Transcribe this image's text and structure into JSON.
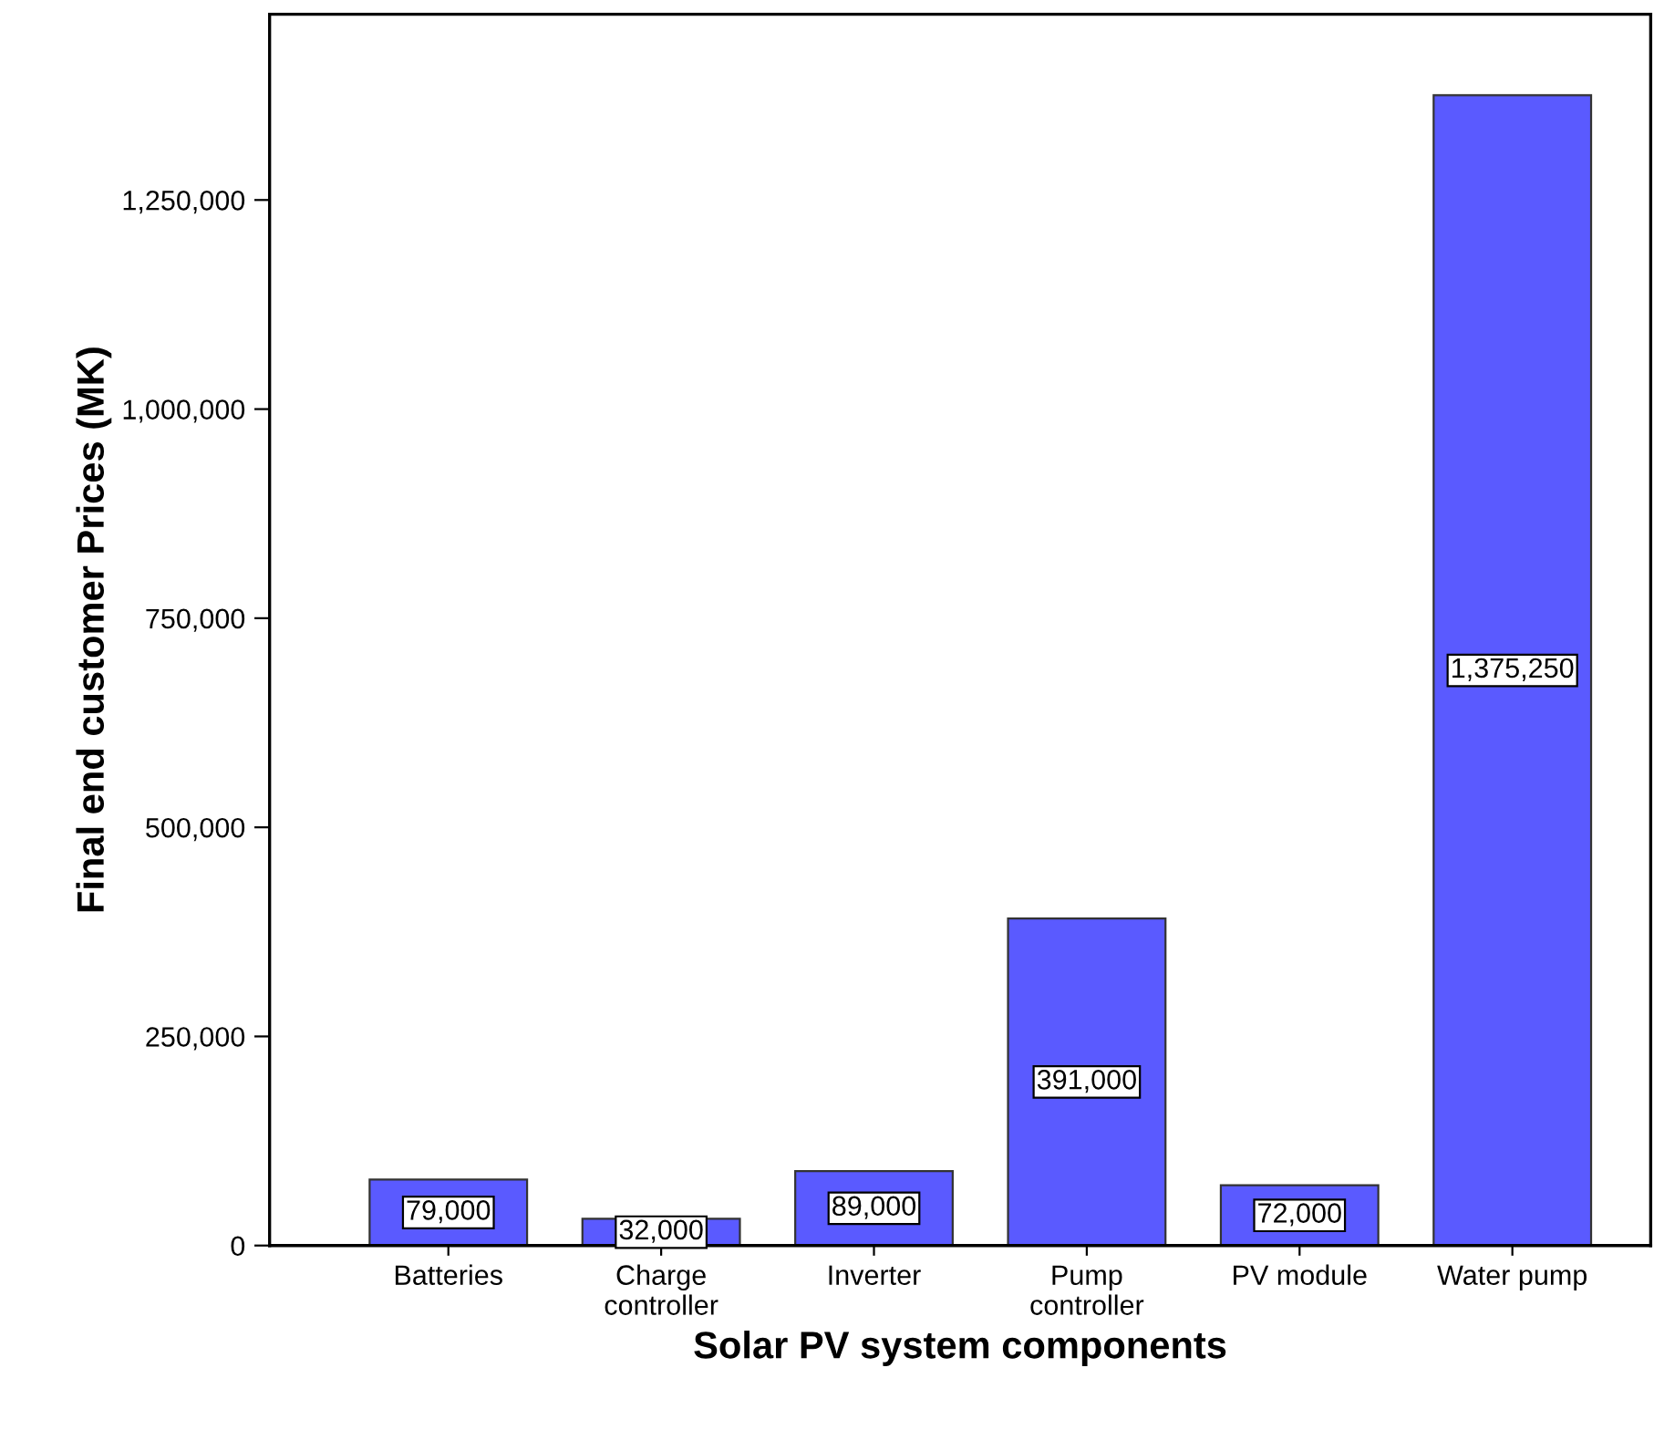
{
  "chart_data": {
    "type": "bar",
    "xlabel": "Solar PV system components",
    "ylabel": "Final end customer Prices (MK)",
    "categories": [
      "Batteries",
      "Charge\ncontroller",
      "Inverter",
      "Pump\ncontroller",
      "PV module",
      "Water pump"
    ],
    "values": [
      79000,
      32000,
      89000,
      391000,
      72000,
      1375250
    ],
    "value_labels": [
      "79,000",
      "32,000",
      "89,000",
      "391,000",
      "72,000",
      "1,375,250"
    ],
    "color": "#5a5aff",
    "ylim": [
      0,
      1472000
    ],
    "yticks": [
      {
        "value": 0,
        "label": "0"
      },
      {
        "value": 250000,
        "label": "250,000"
      },
      {
        "value": 500000,
        "label": "500,000"
      },
      {
        "value": 750000,
        "label": "750,000"
      },
      {
        "value": 1000000,
        "label": "1,000,000"
      },
      {
        "value": 1250000,
        "label": "1,250,000"
      }
    ],
    "grid": false
  }
}
